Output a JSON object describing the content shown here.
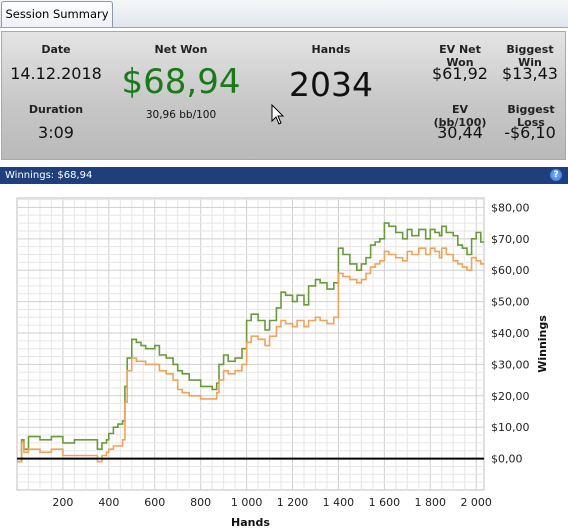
{
  "tab": {
    "label": "Session Summary"
  },
  "summary": {
    "date_label": "Date",
    "date_value": "14.12.2018",
    "duration_label": "Duration",
    "duration_value": "3:09",
    "net_won_label": "Net Won",
    "net_won_value": "$68,94",
    "net_won_rate": "30,96 bb/100",
    "hands_label": "Hands",
    "hands_value": "2034",
    "ev_net_won_label": "EV Net Won",
    "ev_net_won_value": "$61,92",
    "ev_rate_label": "EV (bb/100)",
    "ev_rate_value": "30,44",
    "biggest_win_label": "Biggest Win",
    "biggest_win_value": "$13,43",
    "biggest_loss_label": "Biggest Loss",
    "biggest_loss_value": "-$6,10",
    "net_won_color": "#1a7a1a"
  },
  "panel": {
    "title": "Winnings: $68,94",
    "help_icon": "?"
  },
  "chart_data": {
    "type": "line",
    "title": "",
    "xlabel": "Hands",
    "ylabel": "Winnings",
    "xlim": [
      0,
      2034
    ],
    "ylim": [
      -10,
      83
    ],
    "x_ticks": [
      200,
      400,
      600,
      800,
      1000,
      1200,
      1400,
      1600,
      1800,
      2000
    ],
    "x_tick_labels": [
      "200",
      "400",
      "600",
      "800",
      "1 000",
      "1 200",
      "1 400",
      "1 600",
      "1 800",
      "2 000"
    ],
    "y_ticks": [
      0,
      10,
      20,
      30,
      40,
      50,
      60,
      70,
      80
    ],
    "y_tick_labels": [
      "$0,00",
      "$10,00",
      "$20,00",
      "$30,00",
      "$40,00",
      "$50,00",
      "$60,00",
      "$70,00",
      "$80,00"
    ],
    "grid": true,
    "series": [
      {
        "color": "#6a9a3c",
        "x": [
          0,
          20,
          30,
          50,
          80,
          100,
          150,
          200,
          250,
          300,
          350,
          370,
          390,
          400,
          420,
          440,
          460,
          470,
          480,
          500,
          520,
          540,
          560,
          600,
          620,
          650,
          680,
          700,
          720,
          750,
          800,
          850,
          870,
          880,
          900,
          920,
          950,
          980,
          1000,
          1020,
          1050,
          1080,
          1100,
          1130,
          1150,
          1170,
          1200,
          1220,
          1250,
          1270,
          1300,
          1320,
          1350,
          1380,
          1400,
          1420,
          1450,
          1480,
          1500,
          1520,
          1540,
          1560,
          1580,
          1600,
          1620,
          1650,
          1680,
          1700,
          1720,
          1750,
          1780,
          1800,
          1820,
          1840,
          1850,
          1870,
          1900,
          1920,
          1940,
          1960,
          1980,
          2000,
          2020,
          2034
        ],
        "y": [
          -1,
          6,
          3,
          7,
          7,
          6,
          7,
          5,
          6,
          6,
          3,
          5,
          6,
          8,
          10,
          11,
          12,
          23,
          32,
          38,
          37,
          36,
          35,
          36,
          33,
          32,
          30,
          28,
          27,
          25,
          23,
          22,
          24,
          30,
          33,
          31,
          32,
          35,
          44,
          46,
          44,
          41,
          44,
          48,
          53,
          52,
          50,
          52,
          49,
          55,
          57,
          56,
          54,
          56,
          67,
          65,
          62,
          60,
          62,
          64,
          68,
          69,
          70,
          75,
          74,
          72,
          70,
          73,
          71,
          73,
          70,
          73,
          72,
          71,
          74,
          72,
          71,
          68,
          67,
          65,
          70,
          72,
          69,
          69
        ]
      },
      {
        "color": "#f2a35a",
        "x": [
          0,
          20,
          30,
          50,
          80,
          100,
          150,
          200,
          250,
          300,
          350,
          370,
          390,
          400,
          420,
          440,
          460,
          470,
          480,
          500,
          520,
          540,
          560,
          600,
          620,
          650,
          680,
          700,
          720,
          750,
          800,
          850,
          870,
          880,
          900,
          920,
          950,
          980,
          1000,
          1020,
          1050,
          1080,
          1100,
          1130,
          1150,
          1170,
          1200,
          1220,
          1250,
          1270,
          1300,
          1320,
          1350,
          1380,
          1400,
          1420,
          1450,
          1480,
          1500,
          1520,
          1540,
          1560,
          1580,
          1600,
          1620,
          1650,
          1680,
          1700,
          1720,
          1750,
          1780,
          1800,
          1820,
          1840,
          1850,
          1870,
          1900,
          1920,
          1940,
          1960,
          1980,
          2000,
          2020,
          2034
        ],
        "y": [
          -1,
          5,
          2,
          3,
          3,
          2,
          3,
          1,
          1,
          1,
          -1,
          1,
          2,
          3,
          4,
          4,
          6,
          18,
          28,
          32,
          31,
          31,
          30,
          30,
          28,
          27,
          25,
          22,
          21,
          20,
          19,
          19,
          21,
          25,
          28,
          27,
          28,
          30,
          37,
          39,
          38,
          36,
          39,
          42,
          44,
          43,
          42,
          44,
          42,
          44,
          45,
          44,
          43,
          45,
          59,
          58,
          57,
          56,
          57,
          59,
          61,
          62,
          63,
          66,
          65,
          64,
          63,
          66,
          65,
          67,
          65,
          67,
          66,
          64,
          67,
          65,
          63,
          62,
          61,
          60,
          64,
          63,
          62,
          62
        ]
      }
    ]
  }
}
